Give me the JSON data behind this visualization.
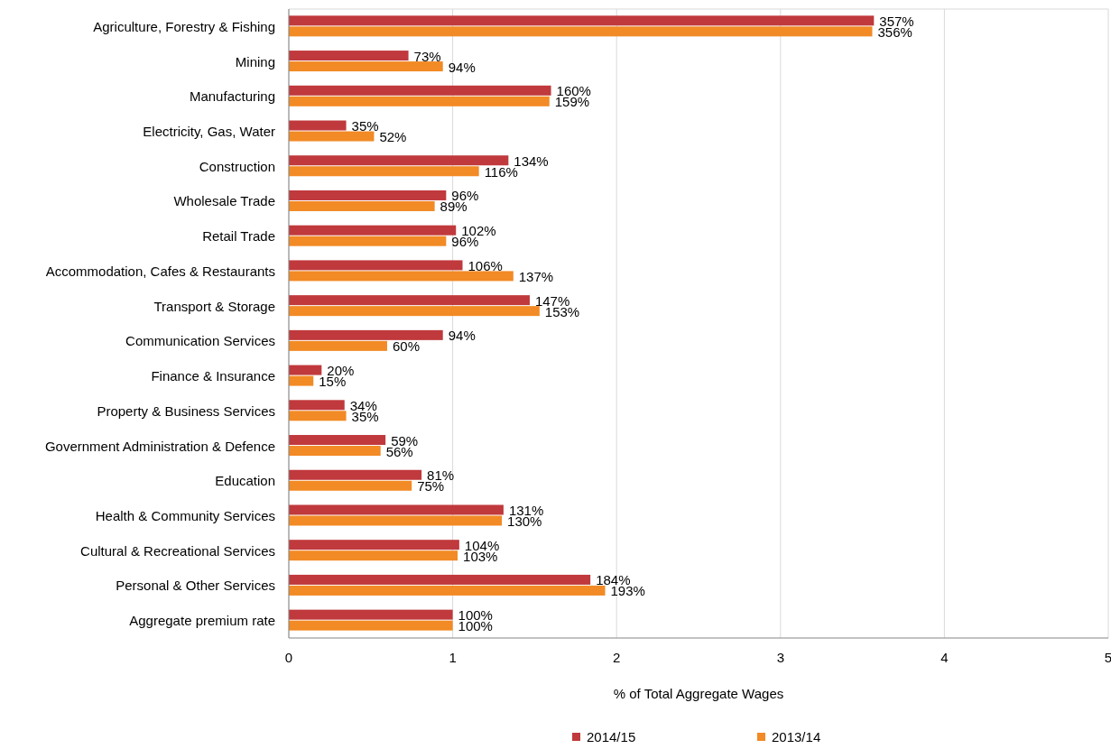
{
  "chart_data": {
    "type": "bar",
    "orientation": "horizontal",
    "xlabel": "% of Total Aggregate Wages",
    "categories": [
      "Agriculture, Forestry & Fishing",
      "Mining",
      "Manufacturing",
      "Electricity, Gas, Water",
      "Construction",
      "Wholesale Trade",
      "Retail Trade",
      "Accommodation, Cafes & Restaurants",
      "Transport & Storage",
      "Communication Services",
      "Finance & Insurance",
      "Property & Business Services",
      "Government Administration & Defence",
      "Education",
      "Health & Community Services",
      "Cultural & Recreational Services",
      "Personal & Other Services",
      "Aggregate premium rate"
    ],
    "series": [
      {
        "name": "2014/15",
        "color": "#c0393c",
        "values": [
          3.57,
          0.73,
          1.6,
          0.35,
          1.34,
          0.96,
          1.02,
          1.06,
          1.47,
          0.94,
          0.2,
          0.34,
          0.59,
          0.81,
          1.31,
          1.04,
          1.84,
          1.0
        ],
        "value_labels": [
          "357%",
          "73%",
          "160%",
          "35%",
          "134%",
          "96%",
          "102%",
          "106%",
          "147%",
          "94%",
          "20%",
          "34%",
          "59%",
          "81%",
          "131%",
          "104%",
          "184%",
          "100%"
        ]
      },
      {
        "name": "2013/14",
        "color": "#f28a25",
        "values": [
          3.56,
          0.94,
          1.59,
          0.52,
          1.16,
          0.89,
          0.96,
          1.37,
          1.53,
          0.6,
          0.15,
          0.35,
          0.56,
          0.75,
          1.3,
          1.03,
          1.93,
          1.0
        ],
        "value_labels": [
          "356%",
          "94%",
          "159%",
          "52%",
          "116%",
          "89%",
          "96%",
          "137%",
          "153%",
          "60%",
          "15%",
          "35%",
          "56%",
          "75%",
          "130%",
          "103%",
          "193%",
          "100%"
        ]
      }
    ],
    "xlim": [
      0,
      5
    ],
    "xticks": [
      0,
      1,
      2,
      3,
      4,
      5
    ],
    "grid": "x",
    "legend": "bottom"
  }
}
